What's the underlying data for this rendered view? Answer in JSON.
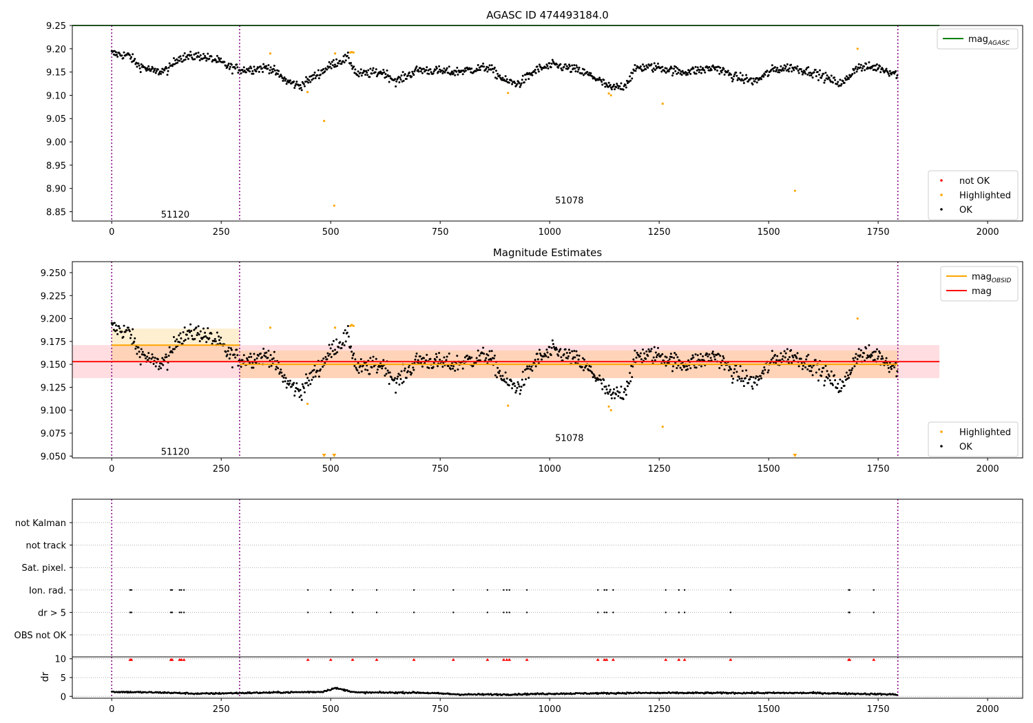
{
  "chart_data": [
    {
      "panel": "agasc_mag",
      "type": "scatter",
      "title": "AGASC ID 474493184.0",
      "xlim": [
        -90,
        2080
      ],
      "ylim": [
        8.83,
        9.25
      ],
      "xticks": [
        "0",
        "250",
        "500",
        "750",
        "1000",
        "1250",
        "1500",
        "1750",
        "2000"
      ],
      "yticks": [
        "8.85",
        "8.90",
        "8.95",
        "9.00",
        "9.05",
        "9.10",
        "9.15",
        "9.20",
        "9.25"
      ],
      "obsid_boundaries": [
        0,
        292,
        1795
      ],
      "obsid_labels": [
        {
          "text": "51120",
          "x": 145,
          "y": 8.845
        },
        {
          "text": "51078",
          "x": 1045,
          "y": 8.875
        }
      ],
      "series": [
        {
          "name": "mag_AGASC",
          "kind": "line",
          "color": "#008000",
          "y": 9.25,
          "x_range": [
            -90,
            1890
          ]
        },
        {
          "name": "OK",
          "kind": "points",
          "color": "#000000",
          "segments": [
            {
              "x": 0,
              "y": 9.19
            },
            {
              "x": 40,
              "y": 9.185
            },
            {
              "x": 60,
              "y": 9.165
            },
            {
              "x": 100,
              "y": 9.15
            },
            {
              "x": 130,
              "y": 9.155
            },
            {
              "x": 150,
              "y": 9.18
            },
            {
              "x": 200,
              "y": 9.185
            },
            {
              "x": 240,
              "y": 9.175
            },
            {
              "x": 270,
              "y": 9.16
            },
            {
              "x": 300,
              "y": 9.155
            },
            {
              "x": 360,
              "y": 9.16
            },
            {
              "x": 400,
              "y": 9.13
            },
            {
              "x": 430,
              "y": 9.12
            },
            {
              "x": 470,
              "y": 9.145
            },
            {
              "x": 510,
              "y": 9.17
            },
            {
              "x": 540,
              "y": 9.18
            },
            {
              "x": 560,
              "y": 9.145
            },
            {
              "x": 620,
              "y": 9.15
            },
            {
              "x": 650,
              "y": 9.13
            },
            {
              "x": 700,
              "y": 9.155
            },
            {
              "x": 780,
              "y": 9.15
            },
            {
              "x": 860,
              "y": 9.16
            },
            {
              "x": 900,
              "y": 9.13
            },
            {
              "x": 930,
              "y": 9.125
            },
            {
              "x": 970,
              "y": 9.155
            },
            {
              "x": 1010,
              "y": 9.165
            },
            {
              "x": 1060,
              "y": 9.155
            },
            {
              "x": 1100,
              "y": 9.14
            },
            {
              "x": 1140,
              "y": 9.115
            },
            {
              "x": 1170,
              "y": 9.12
            },
            {
              "x": 1200,
              "y": 9.16
            },
            {
              "x": 1250,
              "y": 9.16
            },
            {
              "x": 1300,
              "y": 9.15
            },
            {
              "x": 1350,
              "y": 9.155
            },
            {
              "x": 1380,
              "y": 9.16
            },
            {
              "x": 1420,
              "y": 9.14
            },
            {
              "x": 1470,
              "y": 9.13
            },
            {
              "x": 1510,
              "y": 9.155
            },
            {
              "x": 1550,
              "y": 9.16
            },
            {
              "x": 1600,
              "y": 9.15
            },
            {
              "x": 1650,
              "y": 9.13
            },
            {
              "x": 1670,
              "y": 9.125
            },
            {
              "x": 1700,
              "y": 9.16
            },
            {
              "x": 1750,
              "y": 9.16
            },
            {
              "x": 1795,
              "y": 9.145
            }
          ],
          "noise": 0.012
        },
        {
          "name": "Highlighted",
          "kind": "points",
          "color": "#ffa500",
          "points": [
            {
              "x": 362,
              "y": 9.19
            },
            {
              "x": 447,
              "y": 9.107
            },
            {
              "x": 485,
              "y": 9.045
            },
            {
              "x": 508,
              "y": 8.863
            },
            {
              "x": 510,
              "y": 9.19
            },
            {
              "x": 545,
              "y": 9.192
            },
            {
              "x": 548,
              "y": 9.193
            },
            {
              "x": 552,
              "y": 9.192
            },
            {
              "x": 905,
              "y": 9.105
            },
            {
              "x": 1135,
              "y": 9.104
            },
            {
              "x": 1140,
              "y": 9.1
            },
            {
              "x": 1258,
              "y": 9.082
            },
            {
              "x": 1560,
              "y": 8.895
            },
            {
              "x": 1703,
              "y": 9.2
            }
          ]
        },
        {
          "name": "not OK",
          "kind": "points",
          "color": "#ff0000",
          "points": []
        }
      ],
      "legends": [
        {
          "position": "upper-right",
          "entries": [
            {
              "label": "mag",
              "sub": "AGASC",
              "kind": "line",
              "color": "#008000"
            }
          ]
        },
        {
          "position": "lower-right",
          "entries": [
            {
              "label": "not OK",
              "kind": "dot",
              "color": "#ff0000"
            },
            {
              "label": "Highlighted",
              "kind": "dot",
              "color": "#ffa500"
            },
            {
              "label": "OK",
              "kind": "dot",
              "color": "#000000"
            }
          ]
        }
      ]
    },
    {
      "panel": "magnitude_estimates",
      "type": "scatter",
      "title": "Magnitude Estimates",
      "xlim": [
        -90,
        2080
      ],
      "ylim": [
        9.048,
        9.262
      ],
      "xticks": [
        "0",
        "250",
        "500",
        "750",
        "1000",
        "1250",
        "1500",
        "1750",
        "2000"
      ],
      "yticks": [
        "9.050",
        "9.075",
        "9.100",
        "9.125",
        "9.150",
        "9.175",
        "9.200",
        "9.225",
        "9.250"
      ],
      "obsid_boundaries": [
        0,
        292,
        1795
      ],
      "obsid_labels": [
        {
          "text": "51120",
          "x": 145,
          "y": 9.055
        },
        {
          "text": "51078",
          "x": 1045,
          "y": 9.07
        }
      ],
      "mag": {
        "value": 9.153,
        "band": [
          9.135,
          9.171
        ],
        "x_range": [
          -90,
          1890
        ],
        "color": "#ff0000"
      },
      "mag_obsid": [
        {
          "x_range": [
            0,
            292
          ],
          "value": 9.171,
          "band": [
            9.153,
            9.189
          ]
        },
        {
          "x_range": [
            292,
            1795
          ],
          "value": 9.15,
          "band": [
            9.135,
            9.165
          ]
        }
      ],
      "highlighted_out_of_range": [
        485,
        508,
        1560
      ],
      "legends": [
        {
          "position": "upper-right",
          "entries": [
            {
              "label": "mag",
              "sub": "OBSID",
              "kind": "line",
              "color": "#ffa500"
            },
            {
              "label": "mag",
              "kind": "line",
              "color": "#ff0000"
            }
          ]
        },
        {
          "position": "lower-right",
          "entries": [
            {
              "label": "Highlighted",
              "kind": "dot",
              "color": "#ffa500"
            },
            {
              "label": "OK",
              "kind": "dot",
              "color": "#000000"
            }
          ]
        }
      ]
    },
    {
      "panel": "flags",
      "type": "scatter",
      "xlim": [
        -90,
        2080
      ],
      "categories": [
        "not Kalman",
        "not track",
        "Sat. pixel.",
        "Ion. rad.",
        "dr > 5",
        "OBS not OK"
      ],
      "flag_points": {
        "Ion. rad.": [
          42,
          45,
          135,
          138,
          155,
          159,
          165,
          448,
          500,
          550,
          605,
          690,
          780,
          858,
          895,
          902,
          908,
          948,
          1110,
          1125,
          1130,
          1145,
          1265,
          1295,
          1308,
          1413,
          1683,
          1685,
          1740
        ],
        "dr > 5": [
          42,
          45,
          135,
          138,
          155,
          159,
          165,
          448,
          500,
          550,
          605,
          690,
          780,
          858,
          895,
          902,
          908,
          948,
          1110,
          1125,
          1130,
          1145,
          1265,
          1295,
          1308,
          1413,
          1683,
          1685,
          1740
        ]
      },
      "obsid_boundaries": [
        0,
        292,
        1795
      ]
    },
    {
      "panel": "dr",
      "type": "scatter",
      "xlim": [
        -90,
        2080
      ],
      "ylim": [
        -0.5,
        10.5
      ],
      "ylabel": "dr",
      "yticks": [
        "0",
        "5",
        "10"
      ],
      "xticks": [
        "0",
        "250",
        "500",
        "750",
        "1000",
        "1250",
        "1500",
        "1750",
        "2000"
      ],
      "clipped_markers_at": 10,
      "clipped_x": [
        42,
        45,
        135,
        138,
        155,
        159,
        165,
        448,
        500,
        550,
        605,
        690,
        780,
        858,
        895,
        902,
        908,
        948,
        1110,
        1125,
        1130,
        1145,
        1265,
        1295,
        1308,
        1413,
        1683,
        1685,
        1740
      ],
      "dr_level": [
        {
          "x": 0,
          "y": 1.2
        },
        {
          "x": 120,
          "y": 1.0
        },
        {
          "x": 200,
          "y": 0.7
        },
        {
          "x": 300,
          "y": 0.9
        },
        {
          "x": 480,
          "y": 1.2
        },
        {
          "x": 510,
          "y": 2.2
        },
        {
          "x": 560,
          "y": 1.0
        },
        {
          "x": 700,
          "y": 1.0
        },
        {
          "x": 800,
          "y": 0.5
        },
        {
          "x": 900,
          "y": 0.5
        },
        {
          "x": 1000,
          "y": 0.7
        },
        {
          "x": 1200,
          "y": 0.9
        },
        {
          "x": 1400,
          "y": 0.9
        },
        {
          "x": 1600,
          "y": 0.9
        },
        {
          "x": 1795,
          "y": 0.5
        }
      ],
      "obsid_boundaries": [
        0,
        292,
        1795
      ]
    }
  ]
}
